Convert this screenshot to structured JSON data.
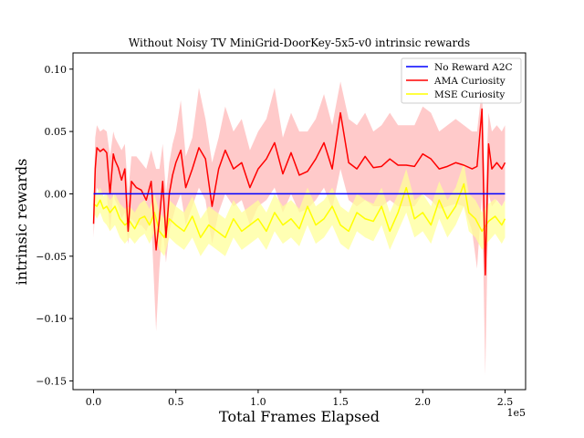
{
  "chart_data": {
    "type": "line",
    "title": "Without Noisy TV MiniGrid-DoorKey-5x5-v0 intrinsic rewards",
    "xlabel": "Total Frames Elapsed",
    "ylabel": "intrinsic rewards",
    "x_offset_label": "1e5",
    "x_scale": 100000,
    "xlim": [
      -12500,
      262500
    ],
    "ylim": [
      -0.157,
      0.113
    ],
    "x_ticks": [
      0,
      50000,
      100000,
      150000,
      200000,
      250000
    ],
    "x_tick_labels": [
      "0.0",
      "0.5",
      "1.0",
      "1.5",
      "2.0",
      "2.5"
    ],
    "y_ticks": [
      -0.15,
      -0.1,
      -0.05,
      0.0,
      0.05,
      0.1
    ],
    "y_tick_labels": [
      "−0.15",
      "−0.10",
      "−0.05",
      "0.00",
      "0.05",
      "0.10"
    ],
    "legend_position": "top-right",
    "colors": {
      "no_reward_a2c": "#0000ff",
      "ama_curiosity": "#ff0000",
      "ama_band": "#ffb3b3",
      "mse_curiosity": "#ffff00",
      "mse_band": "#ffff99"
    },
    "series": [
      {
        "name": "No Reward A2C",
        "x": [
          0,
          250000
        ],
        "values": [
          0.0,
          0.0
        ]
      },
      {
        "name": "AMA Curiosity",
        "x": [
          0,
          1000,
          2000,
          4000,
          6000,
          8000,
          10000,
          12000,
          13000,
          15000,
          17000,
          19000,
          21000,
          23000,
          26000,
          29000,
          32000,
          35000,
          38000,
          40000,
          42000,
          44000,
          46000,
          48000,
          50000,
          53000,
          56000,
          60000,
          64000,
          68000,
          72000,
          76000,
          80000,
          85000,
          90000,
          95000,
          100000,
          105000,
          110000,
          115000,
          120000,
          125000,
          130000,
          135000,
          140000,
          145000,
          150000,
          155000,
          160000,
          165000,
          170000,
          175000,
          180000,
          185000,
          190000,
          195000,
          200000,
          205000,
          210000,
          215000,
          220000,
          225000,
          230000,
          233000,
          236000,
          238000,
          240000,
          242000,
          245000,
          248000,
          250000
        ],
        "values": [
          -0.024,
          0.02,
          0.037,
          0.034,
          0.036,
          0.033,
          0.0,
          0.032,
          0.027,
          0.021,
          0.011,
          0.02,
          -0.03,
          0.01,
          0.005,
          0.003,
          -0.005,
          0.01,
          -0.045,
          -0.02,
          0.01,
          -0.035,
          0.0,
          0.015,
          0.025,
          0.035,
          0.005,
          0.02,
          0.037,
          0.028,
          -0.01,
          0.02,
          0.035,
          0.02,
          0.025,
          0.005,
          0.02,
          0.028,
          0.041,
          0.016,
          0.033,
          0.015,
          0.018,
          0.028,
          0.041,
          0.02,
          0.065,
          0.025,
          0.02,
          0.03,
          0.021,
          0.022,
          0.028,
          0.023,
          0.023,
          0.022,
          0.032,
          0.028,
          0.02,
          0.022,
          0.025,
          0.023,
          0.02,
          0.022,
          0.068,
          -0.065,
          0.04,
          0.02,
          0.025,
          0.02,
          0.025
        ],
        "band_lower": [
          -0.035,
          -0.01,
          0.005,
          0.0,
          0.0,
          0.0,
          -0.03,
          0.0,
          -0.005,
          -0.01,
          -0.02,
          -0.015,
          -0.04,
          -0.02,
          -0.025,
          -0.025,
          -0.03,
          -0.02,
          -0.11,
          -0.06,
          -0.025,
          -0.055,
          -0.03,
          -0.02,
          -0.01,
          0.0,
          -0.025,
          -0.01,
          0.005,
          -0.005,
          -0.04,
          -0.015,
          0.0,
          -0.01,
          -0.005,
          -0.025,
          -0.01,
          -0.005,
          0.005,
          -0.015,
          0.0,
          -0.015,
          -0.012,
          -0.005,
          0.005,
          -0.012,
          0.02,
          -0.005,
          -0.01,
          -0.005,
          -0.01,
          -0.01,
          -0.005,
          -0.01,
          -0.01,
          -0.01,
          0.0,
          -0.005,
          -0.012,
          -0.01,
          -0.008,
          -0.01,
          -0.03,
          -0.06,
          0.0,
          -0.145,
          0.0,
          -0.01,
          -0.005,
          -0.01,
          -0.005
        ],
        "band_upper": [
          -0.01,
          0.045,
          0.055,
          0.05,
          0.052,
          0.05,
          0.03,
          0.05,
          0.045,
          0.04,
          0.035,
          0.04,
          0.0,
          0.03,
          0.03,
          0.025,
          0.02,
          0.035,
          0.02,
          0.02,
          0.04,
          0.0,
          0.025,
          0.04,
          0.05,
          0.075,
          0.03,
          0.045,
          0.085,
          0.06,
          0.025,
          0.045,
          0.07,
          0.05,
          0.06,
          0.035,
          0.05,
          0.06,
          0.085,
          0.045,
          0.065,
          0.05,
          0.05,
          0.06,
          0.08,
          0.055,
          0.09,
          0.06,
          0.055,
          0.065,
          0.05,
          0.055,
          0.065,
          0.055,
          0.055,
          0.055,
          0.07,
          0.065,
          0.05,
          0.055,
          0.06,
          0.055,
          0.05,
          0.05,
          0.085,
          0.0,
          0.065,
          0.05,
          0.055,
          0.05,
          0.055
        ]
      },
      {
        "name": "MSE Curiosity",
        "x": [
          0,
          2000,
          4000,
          6000,
          8000,
          10000,
          13000,
          16000,
          19000,
          22000,
          25000,
          28000,
          31000,
          34000,
          37000,
          40000,
          43000,
          46000,
          50000,
          55000,
          60000,
          65000,
          70000,
          75000,
          80000,
          85000,
          90000,
          95000,
          100000,
          105000,
          110000,
          115000,
          120000,
          125000,
          130000,
          135000,
          140000,
          145000,
          150000,
          155000,
          160000,
          165000,
          170000,
          175000,
          180000,
          185000,
          190000,
          195000,
          200000,
          205000,
          210000,
          215000,
          220000,
          225000,
          228000,
          232000,
          236000,
          240000,
          244000,
          248000,
          250000
        ],
        "values": [
          -0.008,
          -0.01,
          -0.005,
          -0.012,
          -0.01,
          -0.015,
          -0.01,
          -0.02,
          -0.025,
          -0.022,
          -0.028,
          -0.02,
          -0.018,
          -0.025,
          -0.015,
          -0.03,
          -0.035,
          -0.02,
          -0.025,
          -0.03,
          -0.018,
          -0.035,
          -0.025,
          -0.03,
          -0.035,
          -0.02,
          -0.03,
          -0.025,
          -0.02,
          -0.03,
          -0.015,
          -0.025,
          -0.02,
          -0.028,
          -0.01,
          -0.025,
          -0.02,
          -0.01,
          -0.025,
          -0.03,
          -0.015,
          -0.02,
          -0.022,
          -0.01,
          -0.03,
          -0.015,
          0.005,
          -0.02,
          -0.015,
          -0.025,
          -0.005,
          -0.02,
          -0.01,
          0.008,
          -0.015,
          -0.02,
          -0.03,
          -0.022,
          -0.018,
          -0.025,
          -0.02
        ],
        "band_lower": [
          -0.015,
          -0.02,
          -0.015,
          -0.022,
          -0.025,
          -0.03,
          -0.025,
          -0.035,
          -0.04,
          -0.035,
          -0.04,
          -0.035,
          -0.032,
          -0.04,
          -0.03,
          -0.045,
          -0.05,
          -0.035,
          -0.04,
          -0.045,
          -0.035,
          -0.05,
          -0.04,
          -0.045,
          -0.05,
          -0.035,
          -0.045,
          -0.04,
          -0.035,
          -0.045,
          -0.03,
          -0.04,
          -0.035,
          -0.042,
          -0.025,
          -0.04,
          -0.035,
          -0.025,
          -0.04,
          -0.045,
          -0.03,
          -0.035,
          -0.038,
          -0.025,
          -0.045,
          -0.03,
          -0.015,
          -0.035,
          -0.03,
          -0.04,
          -0.02,
          -0.035,
          -0.025,
          -0.01,
          -0.03,
          -0.035,
          -0.045,
          -0.038,
          -0.032,
          -0.04,
          -0.035
        ],
        "band_upper": [
          0.0,
          0.0,
          0.005,
          -0.002,
          0.0,
          -0.005,
          0.0,
          -0.008,
          -0.012,
          -0.01,
          -0.015,
          -0.008,
          -0.005,
          -0.012,
          0.0,
          -0.015,
          -0.02,
          -0.005,
          -0.01,
          -0.015,
          -0.002,
          -0.02,
          -0.01,
          -0.015,
          -0.02,
          -0.005,
          -0.015,
          -0.01,
          -0.005,
          -0.015,
          0.0,
          -0.01,
          -0.005,
          -0.012,
          0.005,
          -0.01,
          -0.005,
          0.005,
          -0.01,
          -0.015,
          0.0,
          -0.005,
          -0.008,
          0.005,
          -0.015,
          0.0,
          0.02,
          -0.005,
          0.0,
          -0.01,
          0.01,
          -0.005,
          0.005,
          0.025,
          0.0,
          -0.005,
          -0.015,
          -0.008,
          -0.004,
          -0.01,
          -0.005
        ]
      }
    ]
  }
}
